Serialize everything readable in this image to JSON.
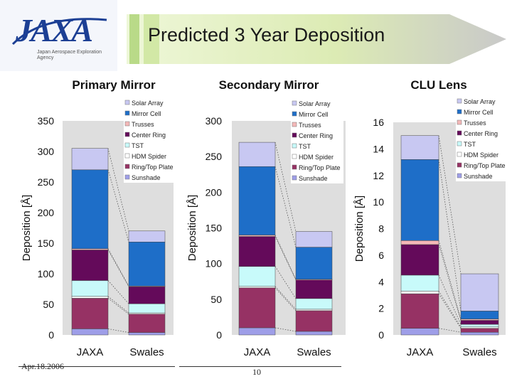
{
  "header": {
    "title": "Predicted 3 Year Deposition",
    "logo": {
      "mark": "JAXA",
      "subtitle": "Japan Aerospace Exploration Agency"
    }
  },
  "footer": {
    "date": "Apr.18.2006",
    "page": "10"
  },
  "colors": {
    "Solar Array": "#c8c8f2",
    "Mirror Cell": "#1e6ec8",
    "Trusses": "#f4b8b8",
    "Center Ring": "#640a5a",
    "TST": "#c8fafa",
    "HDM Spider": "#ffffff",
    "Ring/Top Plate": "#963264",
    "Sunshade": "#9e9ee8"
  },
  "chart_data": [
    {
      "type": "bar",
      "stacked": true,
      "title": "Primary Mirror",
      "ylabel": "Deposition [Å]",
      "categories": [
        "JAXA",
        "Swales"
      ],
      "ylim": [
        0,
        350
      ],
      "yticks": [
        0,
        50,
        100,
        150,
        200,
        250,
        300,
        350
      ],
      "ytick_labels": [
        "0",
        "50",
        "100",
        "150",
        "200",
        "250",
        "300",
        "350"
      ],
      "legend": [
        "Solar Array",
        "Mirror Cell",
        "Trusses",
        "Center Ring",
        "TST",
        "HDM Spider",
        "Ring/Top Plate",
        "Sunshade"
      ],
      "series": [
        {
          "name": "Sunshade",
          "values": [
            10,
            4
          ]
        },
        {
          "name": "Ring/Top Plate",
          "values": [
            50,
            30
          ]
        },
        {
          "name": "HDM Spider",
          "values": [
            3,
            2
          ]
        },
        {
          "name": "TST",
          "values": [
            26,
            15
          ]
        },
        {
          "name": "Center Ring",
          "values": [
            50,
            28
          ]
        },
        {
          "name": "Trusses",
          "values": [
            2,
            1
          ]
        },
        {
          "name": "Mirror Cell",
          "values": [
            129,
            72
          ]
        },
        {
          "name": "Solar Array",
          "values": [
            35,
            18
          ]
        }
      ]
    },
    {
      "type": "bar",
      "stacked": true,
      "title": "Secondary Mirror",
      "ylabel": "Deposition [Å]",
      "categories": [
        "JAXA",
        "Swales"
      ],
      "ylim": [
        0,
        300
      ],
      "yticks": [
        0,
        50,
        100,
        150,
        200,
        250,
        300
      ],
      "ytick_labels": [
        "0",
        "50",
        "100",
        "150",
        "200",
        "250",
        "300"
      ],
      "legend": [
        "Solar Array",
        "Mirror Cell",
        "Trusses",
        "Center Ring",
        "TST",
        "HDM Spider",
        "Ring/Top Plate",
        "Sunshade"
      ],
      "series": [
        {
          "name": "Sunshade",
          "values": [
            10,
            5
          ]
        },
        {
          "name": "Ring/Top Plate",
          "values": [
            56,
            29
          ]
        },
        {
          "name": "HDM Spider",
          "values": [
            2,
            2
          ]
        },
        {
          "name": "TST",
          "values": [
            28,
            15
          ]
        },
        {
          "name": "Center Ring",
          "values": [
            42,
            26
          ]
        },
        {
          "name": "Trusses",
          "values": [
            2,
            1
          ]
        },
        {
          "name": "Mirror Cell",
          "values": [
            96,
            45
          ]
        },
        {
          "name": "Solar Array",
          "values": [
            34,
            22
          ]
        }
      ]
    },
    {
      "type": "bar",
      "stacked": true,
      "title": "CLU Lens",
      "ylabel": "Deposition [Å]",
      "categories": [
        "JAXA",
        "Swales"
      ],
      "ylim": [
        0,
        16
      ],
      "yticks": [
        0,
        2,
        4,
        6,
        8,
        10,
        12,
        14,
        16
      ],
      "ytick_labels": [
        "0",
        "2",
        "4",
        "6",
        "8",
        "10",
        "12",
        "14",
        "16"
      ],
      "legend": [
        "Solar Array",
        "Mirror Cell",
        "Trusses",
        "Center Ring",
        "TST",
        "HDM Spider",
        "Ring/Top Plate",
        "Sunshade"
      ],
      "series": [
        {
          "name": "Sunshade",
          "values": [
            0.5,
            0.2
          ]
        },
        {
          "name": "Ring/Top Plate",
          "values": [
            2.6,
            0.3
          ]
        },
        {
          "name": "HDM Spider",
          "values": [
            0.2,
            0.1
          ]
        },
        {
          "name": "TST",
          "values": [
            1.2,
            0.2
          ]
        },
        {
          "name": "Center Ring",
          "values": [
            2.3,
            0.3
          ]
        },
        {
          "name": "Trusses",
          "values": [
            0.3,
            0.1
          ]
        },
        {
          "name": "Mirror Cell",
          "values": [
            6.1,
            0.6
          ]
        },
        {
          "name": "Solar Array",
          "values": [
            1.8,
            2.8
          ]
        }
      ]
    }
  ]
}
